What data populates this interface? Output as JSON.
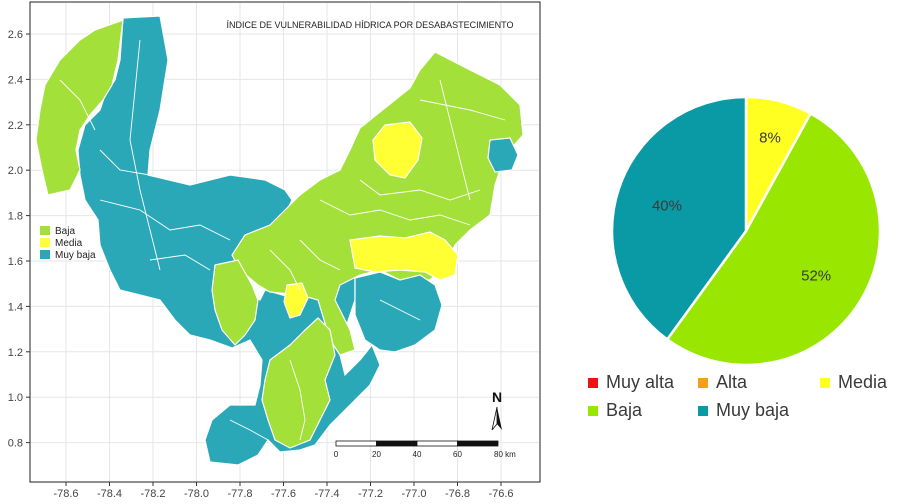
{
  "map": {
    "title": "ÍNDICE DE VULNERABILIDAD HÍDRICA POR DESABASTECIMIENTO",
    "x_ticks": [
      "-78.6",
      "-78.4",
      "-78.2",
      "-78.0",
      "-77.8",
      "-77.6",
      "-77.4",
      "-77.2",
      "-77.0",
      "-76.8",
      "-76.6"
    ],
    "y_ticks": [
      "2.6",
      "2.4",
      "2.2",
      "2.0",
      "1.8",
      "1.6",
      "1.4",
      "1.2",
      "1.0",
      "0.8"
    ],
    "legend": [
      {
        "label": "Baja",
        "color": "#a3e03a"
      },
      {
        "label": "Media",
        "color": "#ffff33"
      },
      {
        "label": "Muy baja",
        "color": "#2aa8b8"
      }
    ],
    "north": "N",
    "scale_labels": [
      "0",
      "20",
      "40",
      "60",
      "80 km"
    ]
  },
  "chart_data": {
    "type": "pie",
    "categories": [
      "Muy alta",
      "Alta",
      "Media",
      "Baja",
      "Muy baja"
    ],
    "values": [
      0,
      0,
      8,
      52,
      40
    ],
    "labels": [
      "",
      "",
      "8%",
      "52%",
      "40%"
    ],
    "colors": [
      "#ee1111",
      "#f5a010",
      "#ffff22",
      "#99e600",
      "#0a9aa6"
    ],
    "legend_position": "bottom"
  }
}
